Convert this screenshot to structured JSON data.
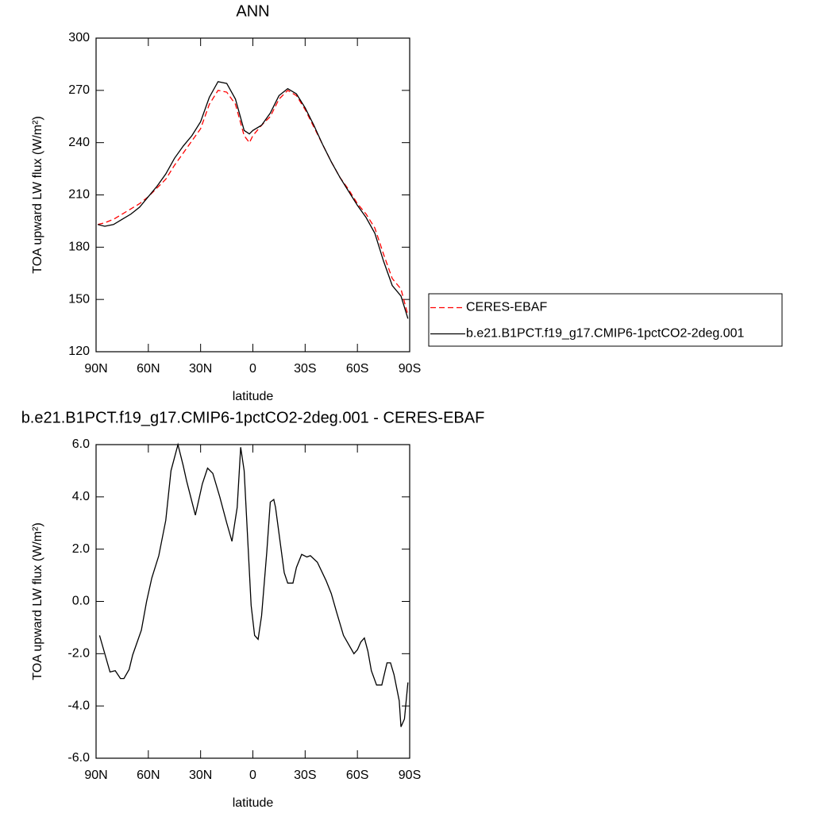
{
  "chart_data": [
    {
      "type": "line",
      "title": "ANN",
      "xlabel": "latitude",
      "ylabel": "TOA upward LW flux (W/m²)",
      "xlim": [
        90,
        -90
      ],
      "ylim": [
        120,
        300
      ],
      "xticks": [
        {
          "value": 90,
          "label": "90N"
        },
        {
          "value": 60,
          "label": "60N"
        },
        {
          "value": 30,
          "label": "30N"
        },
        0,
        {
          "value": -30,
          "label": "30S"
        },
        {
          "value": -60,
          "label": "60S"
        },
        {
          "value": -90,
          "label": "90S"
        }
      ],
      "yticks": [
        120,
        150,
        180,
        210,
        240,
        270,
        300
      ],
      "legend": "right",
      "x": [
        89,
        85,
        80,
        75,
        70,
        65,
        60,
        55,
        50,
        45,
        40,
        35,
        30,
        25,
        20,
        15,
        10,
        5,
        2,
        0,
        -5,
        -10,
        -15,
        -20,
        -25,
        -30,
        -35,
        -40,
        -45,
        -50,
        -55,
        -60,
        -65,
        -70,
        -75,
        -80,
        -85,
        -89
      ],
      "series": [
        {
          "name": "CERES-EBAF",
          "color": "#ff0000",
          "dash": "dashed",
          "values": [
            193,
            194,
            196,
            199,
            202,
            205,
            209,
            214,
            219,
            227,
            234,
            241,
            248,
            262,
            270,
            269,
            262,
            244,
            240,
            244,
            250,
            255,
            265,
            270,
            267,
            259,
            249,
            239,
            229,
            220,
            213,
            205,
            199,
            191,
            176,
            162,
            156,
            141
          ]
        },
        {
          "name": "b.e21.B1PCT.f19_g17.CMIP6-1pctCO2-2deg.001",
          "color": "#000000",
          "dash": "solid",
          "values": [
            193,
            192,
            193,
            196,
            199,
            203,
            209,
            215,
            222,
            231,
            238,
            244,
            252,
            266,
            275,
            274,
            265,
            247,
            245,
            247,
            250,
            257,
            267,
            271,
            268,
            260,
            250,
            239,
            229,
            220,
            212,
            204,
            197,
            188,
            172,
            158,
            152,
            139
          ]
        }
      ]
    },
    {
      "type": "line",
      "title": "b.e21.B1PCT.f19_g17.CMIP6-1pctCO2-2deg.001 - CERES-EBAF",
      "xlabel": "latitude",
      "ylabel": "TOA upward LW flux (W/m²)",
      "xlim": [
        90,
        -90
      ],
      "ylim": [
        -6,
        6
      ],
      "xticks": [
        {
          "value": 90,
          "label": "90N"
        },
        {
          "value": 60,
          "label": "60N"
        },
        {
          "value": 30,
          "label": "30N"
        },
        0,
        {
          "value": -30,
          "label": "30S"
        },
        {
          "value": -60,
          "label": "60S"
        },
        {
          "value": -90,
          "label": "90S"
        }
      ],
      "yticks": [
        {
          "value": -6,
          "label": "-6.0"
        },
        {
          "value": -4,
          "label": "-4.0"
        },
        {
          "value": -2,
          "label": "-2.0"
        },
        {
          "value": 0,
          "label": "0.0"
        },
        {
          "value": 2,
          "label": "2.0"
        },
        {
          "value": 4,
          "label": "4.0"
        },
        {
          "value": 6,
          "label": "6.0"
        }
      ],
      "x": [
        88,
        85,
        82,
        79,
        76,
        74,
        71,
        69,
        64,
        61,
        58,
        54,
        50,
        47,
        43,
        40,
        38,
        33,
        29,
        26,
        23,
        19,
        15,
        12,
        9,
        7,
        5,
        1,
        -1,
        -3,
        -5,
        -8,
        -10,
        -12,
        -13,
        -18,
        -20,
        -23,
        -25,
        -28,
        -31,
        -33,
        -37,
        -42,
        -45,
        -48,
        -52,
        -58,
        -60,
        -62,
        -64,
        -66,
        -68,
        -71,
        -74,
        -77,
        -79,
        -81,
        -84,
        -85,
        -87,
        -89
      ],
      "series": [
        {
          "color": "#000000",
          "dash": "solid",
          "values": [
            -1.3,
            -2.0,
            -2.7,
            -2.65,
            -2.95,
            -2.95,
            -2.6,
            -2.05,
            -1.1,
            0.0,
            0.9,
            1.75,
            3.1,
            5.0,
            6.0,
            5.2,
            4.6,
            3.3,
            4.5,
            5.1,
            4.9,
            4.0,
            3.0,
            2.3,
            3.6,
            5.9,
            5.0,
            -0.15,
            -1.3,
            -1.45,
            -0.55,
            1.9,
            3.8,
            3.9,
            3.6,
            1.1,
            0.7,
            0.7,
            1.3,
            1.8,
            1.7,
            1.75,
            1.5,
            0.8,
            0.3,
            -0.4,
            -1.3,
            -2.0,
            -1.85,
            -1.55,
            -1.4,
            -1.9,
            -2.65,
            -3.2,
            -3.2,
            -2.35,
            -2.35,
            -2.8,
            -3.8,
            -4.8,
            -4.5,
            -3.1
          ]
        }
      ]
    }
  ]
}
